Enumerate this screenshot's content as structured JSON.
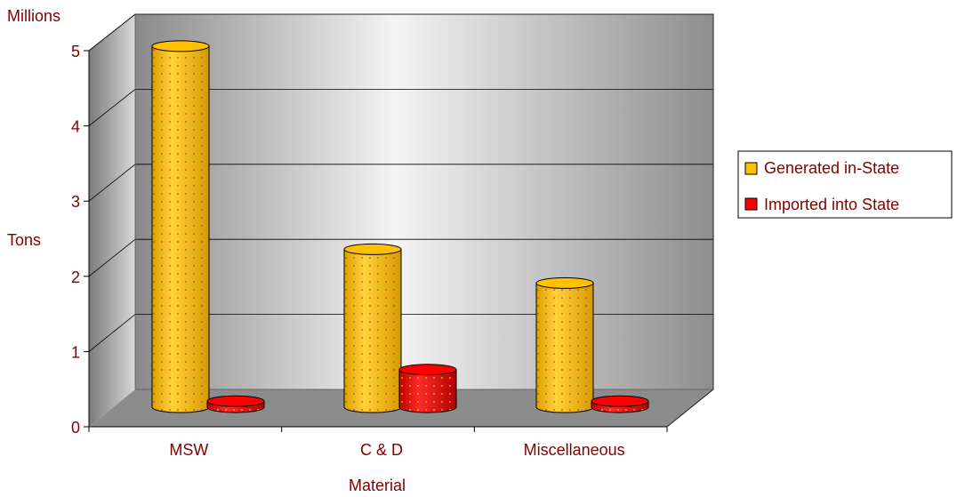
{
  "chart_data": {
    "type": "bar",
    "style": "3d-cylinder",
    "unit_label": "Millions",
    "ylabel": "Tons",
    "xlabel": "Material",
    "categories": [
      "MSW",
      "C & D",
      "Miscellaneous"
    ],
    "series": [
      {
        "name": "Generated in-State",
        "values": [
          4.8,
          2.1,
          1.65
        ],
        "color": "#FFC000"
      },
      {
        "name": "Imported into State",
        "values": [
          0.08,
          0.5,
          0.08
        ],
        "color": "#FF0000"
      }
    ],
    "ylim": [
      0,
      5
    ],
    "yticks": [
      "0",
      "1",
      "2",
      "3",
      "4",
      "5"
    ],
    "grid": true,
    "legend": "right",
    "text_color": "#800000"
  }
}
